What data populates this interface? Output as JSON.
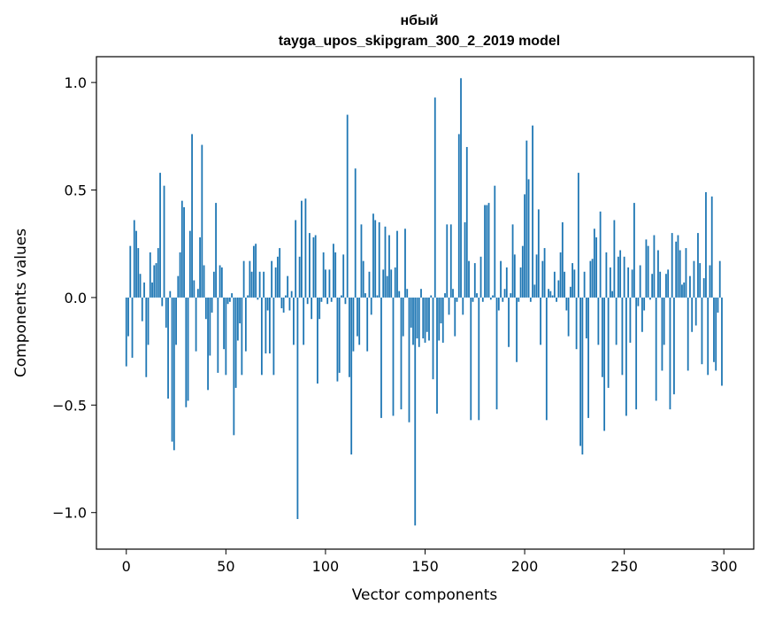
{
  "colors": {
    "bar": "#1f77b4",
    "axis": "#000000",
    "background": "#ffffff"
  },
  "chart_data": {
    "type": "bar",
    "title": "нбый",
    "subtitle": "tayga_upos_skipgram_300_2_2019 model",
    "xlabel": "Vector components",
    "ylabel": "Components values",
    "xlim": [
      -15,
      315
    ],
    "ylim": [
      -1.17,
      1.12
    ],
    "grid": false,
    "legend": "none",
    "xticks": [
      0,
      50,
      100,
      150,
      200,
      250,
      300
    ],
    "xtick_labels": [
      "0",
      "50",
      "100",
      "150",
      "200",
      "250",
      "300"
    ],
    "yticks": [
      1.0,
      0.5,
      0.0,
      -0.5,
      -1.0
    ],
    "ytick_labels": [
      "1.0",
      "0.5",
      "0.0",
      "−0.5",
      "−1.0"
    ],
    "x": "0..299",
    "values": [
      -0.32,
      -0.18,
      0.24,
      -0.28,
      0.36,
      0.31,
      0.23,
      0.11,
      -0.11,
      0.07,
      -0.37,
      -0.22,
      0.21,
      0.07,
      0.15,
      0.16,
      0.23,
      0.58,
      -0.04,
      0.52,
      -0.14,
      -0.47,
      0.03,
      -0.67,
      -0.71,
      -0.22,
      0.1,
      0.21,
      0.45,
      0.42,
      -0.51,
      -0.48,
      0.31,
      0.76,
      0.08,
      -0.25,
      0.04,
      0.28,
      0.71,
      0.15,
      -0.1,
      -0.43,
      -0.27,
      -0.07,
      0.12,
      0.44,
      -0.35,
      0.15,
      0.14,
      -0.24,
      -0.36,
      -0.03,
      -0.02,
      0.02,
      -0.64,
      -0.42,
      -0.2,
      -0.12,
      -0.36,
      0.17,
      -0.25,
      0.01,
      0.17,
      0.12,
      0.24,
      0.25,
      -0.01,
      0.12,
      -0.36,
      0.12,
      -0.26,
      -0.06,
      -0.26,
      0.17,
      -0.36,
      0.14,
      0.19,
      0.23,
      -0.05,
      -0.07,
      0.01,
      0.1,
      -0.06,
      0.03,
      -0.22,
      0.36,
      -1.03,
      0.19,
      0.45,
      -0.22,
      0.46,
      -0.03,
      0.3,
      -0.1,
      0.28,
      0.29,
      -0.4,
      -0.1,
      -0.02,
      0.21,
      0.13,
      -0.03,
      0.13,
      -0.02,
      0.25,
      0.21,
      -0.39,
      -0.35,
      0.01,
      0.2,
      -0.03,
      0.85,
      -0.37,
      -0.73,
      -0.25,
      0.6,
      -0.18,
      -0.22,
      0.34,
      0.17,
      0.02,
      -0.25,
      0.12,
      -0.08,
      0.39,
      0.36,
      0.01,
      0.35,
      -0.56,
      0.13,
      0.33,
      0.1,
      0.29,
      0.13,
      -0.55,
      0.14,
      0.31,
      0.03,
      -0.52,
      -0.18,
      0.32,
      0.04,
      -0.58,
      -0.14,
      -0.22,
      -1.06,
      -0.19,
      -0.23,
      0.04,
      -0.19,
      -0.21,
      -0.16,
      -0.2,
      0.01,
      -0.38,
      0.93,
      -0.54,
      -0.2,
      -0.12,
      -0.21,
      0.02,
      0.34,
      -0.08,
      0.34,
      0.04,
      -0.18,
      -0.02,
      0.76,
      1.02,
      -0.08,
      0.35,
      0.7,
      0.17,
      -0.57,
      -0.02,
      0.16,
      0.02,
      -0.57,
      0.19,
      -0.02,
      0.43,
      0.43,
      0.44,
      -0.01,
      0.01,
      0.52,
      -0.52,
      -0.06,
      0.17,
      -0.02,
      0.04,
      0.14,
      -0.23,
      0.02,
      0.34,
      0.2,
      -0.3,
      -0.02,
      0.14,
      0.24,
      0.48,
      0.73,
      0.55,
      -0.02,
      0.8,
      0.06,
      0.2,
      0.41,
      -0.22,
      0.17,
      0.23,
      -0.57,
      0.04,
      0.03,
      0.01,
      0.12,
      -0.02,
      0.08,
      0.21,
      0.35,
      0.12,
      -0.06,
      -0.18,
      0.05,
      0.16,
      0.13,
      -0.24,
      0.58,
      -0.69,
      -0.73,
      0.12,
      -0.19,
      -0.56,
      0.17,
      0.18,
      0.32,
      0.28,
      -0.22,
      0.4,
      -0.37,
      -0.62,
      0.21,
      -0.42,
      0.14,
      0.03,
      0.36,
      -0.22,
      0.19,
      0.22,
      -0.36,
      0.19,
      -0.55,
      0.14,
      -0.21,
      0.13,
      0.44,
      -0.52,
      -0.04,
      0.15,
      -0.16,
      -0.06,
      0.27,
      0.24,
      -0.01,
      0.11,
      0.29,
      -0.48,
      0.22,
      0.12,
      -0.34,
      -0.22,
      0.11,
      0.13,
      -0.52,
      0.3,
      -0.45,
      0.26,
      0.29,
      0.22,
      0.06,
      0.07,
      0.23,
      -0.34,
      0.1,
      -0.16,
      0.17,
      -0.13,
      0.3,
      0.16,
      -0.31,
      0.09,
      0.49,
      -0.36,
      0.15,
      0.47,
      -0.3,
      -0.34,
      -0.07,
      0.17,
      -0.41
    ]
  }
}
